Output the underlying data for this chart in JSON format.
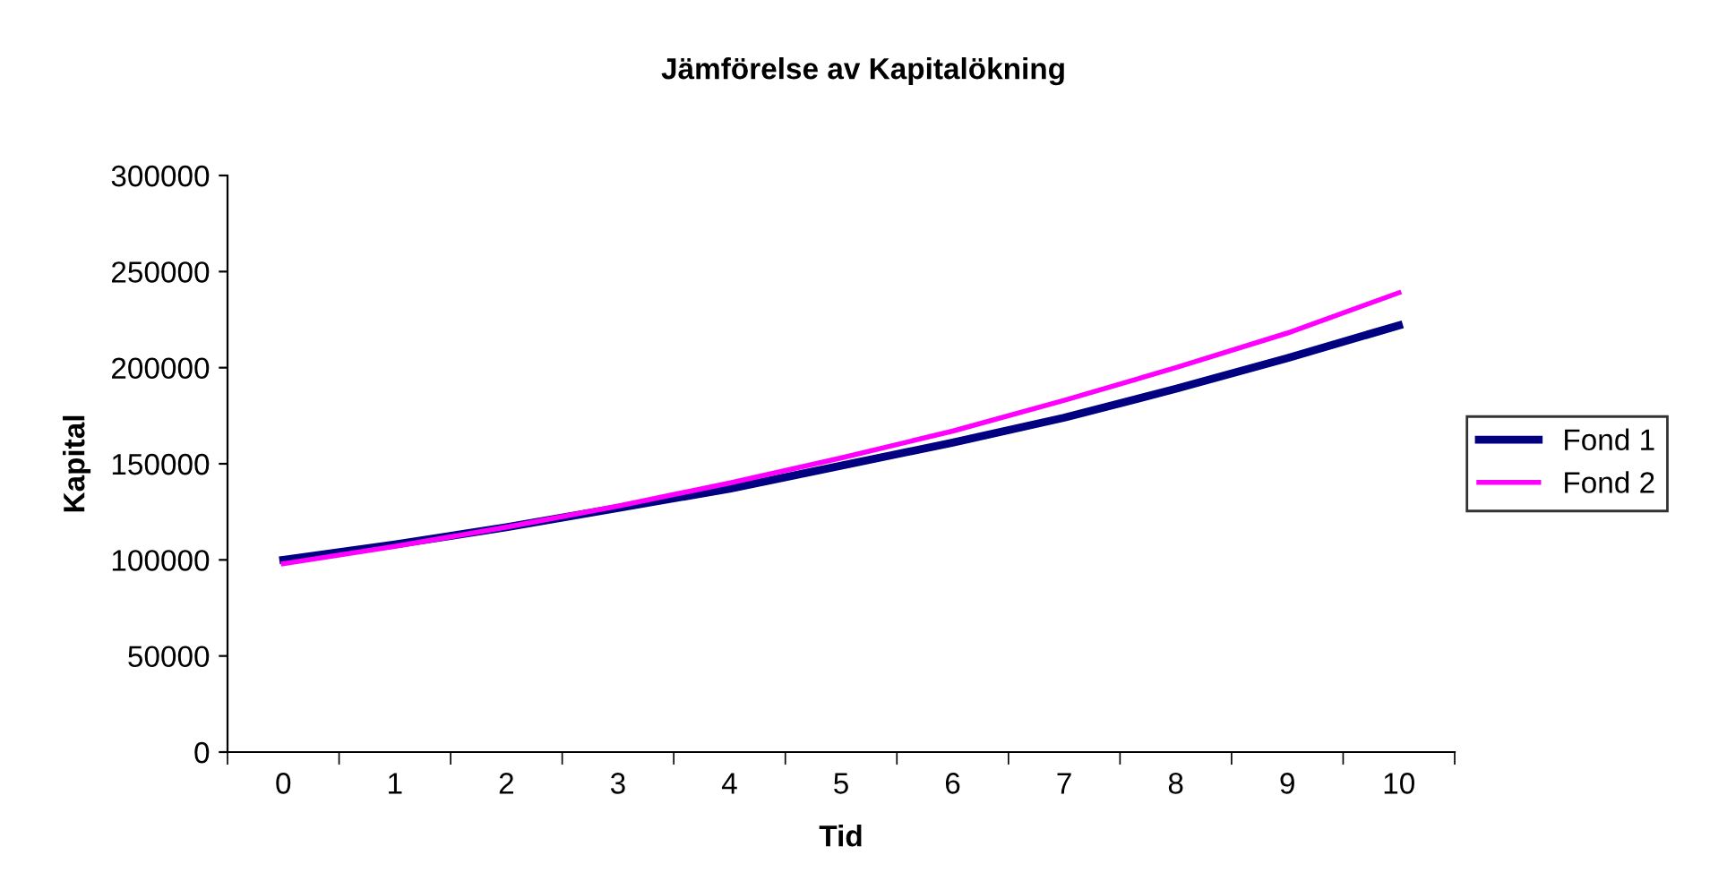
{
  "chart_data": {
    "type": "line",
    "title": "Jämförelse av Kapitalökning",
    "xlabel": "Tid",
    "ylabel": "Kapital",
    "categories": [
      "0",
      "1",
      "2",
      "3",
      "4",
      "5",
      "6",
      "7",
      "8",
      "9",
      "10"
    ],
    "series": [
      {
        "name": "Fond 1",
        "color": "#000080",
        "values": [
          100000,
          108000,
          117000,
          127000,
          137000,
          149000,
          161000,
          174000,
          189000,
          205000,
          222000
        ]
      },
      {
        "name": "Fond 2",
        "color": "#ff00ff",
        "values": [
          98000,
          107000,
          117000,
          128000,
          140000,
          153000,
          167000,
          183000,
          200000,
          218000,
          239000
        ]
      }
    ],
    "ylim": [
      0,
      300000
    ],
    "yticks": [
      0,
      50000,
      100000,
      150000,
      200000,
      250000,
      300000
    ],
    "grid": false,
    "legend": "right",
    "marker": "none",
    "line_style": "solid"
  }
}
